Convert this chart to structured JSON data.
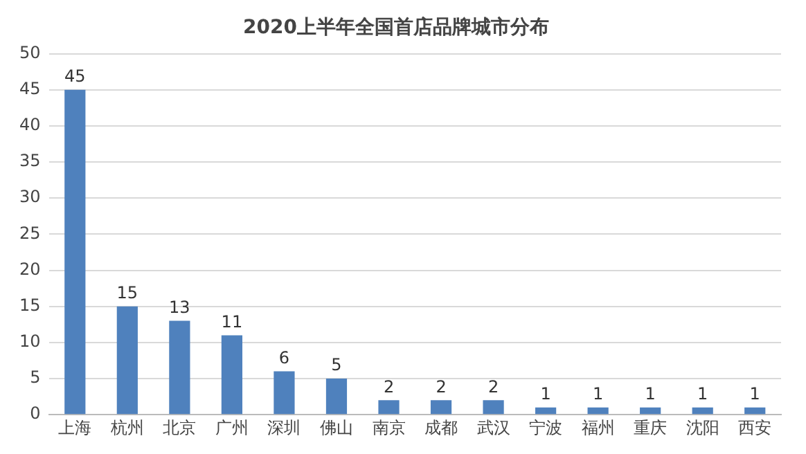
{
  "chart_data": {
    "type": "bar",
    "title": "2020上半年全国首店品牌城市分布",
    "categories": [
      "上海",
      "杭州",
      "北京",
      "广州",
      "深圳",
      "佛山",
      "南京",
      "成都",
      "武汉",
      "宁波",
      "福州",
      "重庆",
      "沈阳",
      "西安"
    ],
    "values": [
      45,
      15,
      13,
      11,
      6,
      5,
      2,
      2,
      2,
      1,
      1,
      1,
      1,
      1
    ],
    "color": "#4f81bd",
    "ylim": [
      0,
      50
    ],
    "yticks": [
      0,
      5,
      10,
      15,
      20,
      25,
      30,
      35,
      40,
      45,
      50
    ],
    "grid": "y",
    "data_labels": true
  }
}
